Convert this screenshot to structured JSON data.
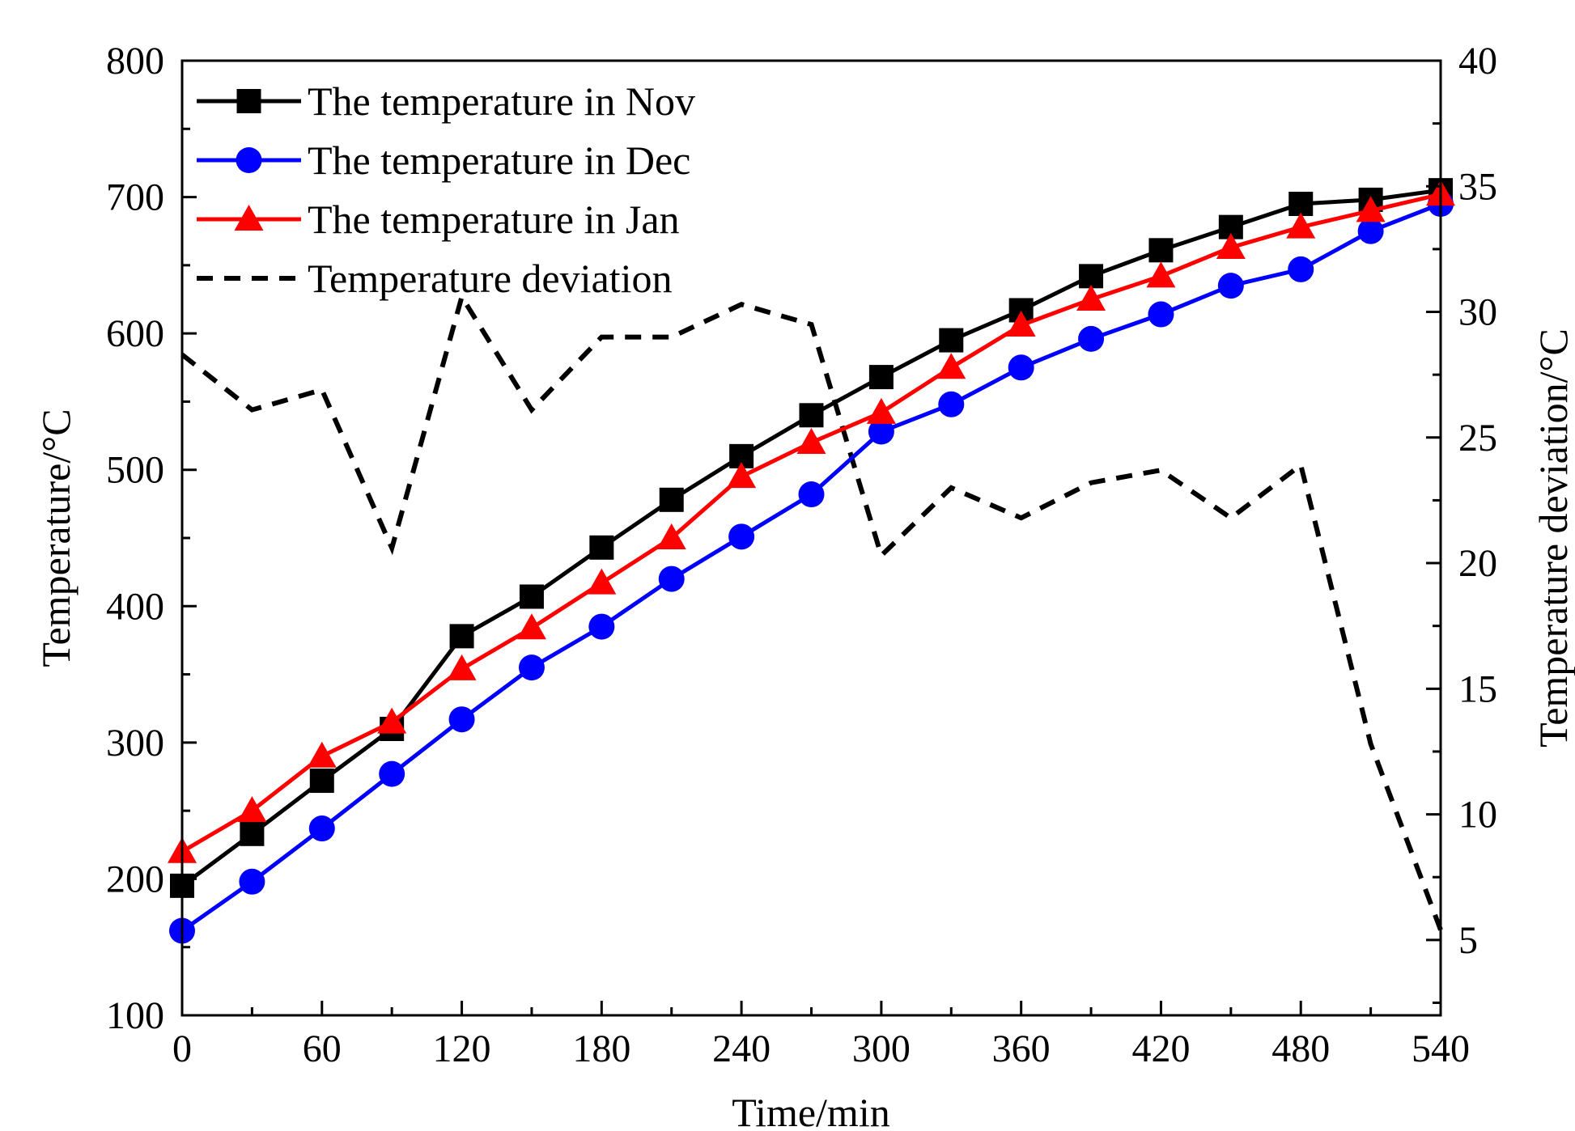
{
  "chart_data": {
    "type": "line",
    "title": "",
    "xlabel": "Time/min",
    "ylabel": "Temperature/°C",
    "y2label": "Temperature deviation/°C",
    "xlim": [
      0,
      540
    ],
    "ylim": [
      100,
      800
    ],
    "y2lim": [
      2,
      40
    ],
    "x_ticks": [
      0,
      60,
      120,
      180,
      240,
      300,
      360,
      420,
      480,
      540
    ],
    "y_ticks": [
      100,
      200,
      300,
      400,
      500,
      600,
      700,
      800
    ],
    "y2_ticks": [
      5,
      10,
      15,
      20,
      25,
      30,
      35,
      40
    ],
    "grid": false,
    "legend_position": "top-left",
    "x": [
      0,
      30,
      60,
      90,
      120,
      150,
      180,
      210,
      240,
      270,
      300,
      330,
      360,
      390,
      420,
      450,
      480,
      510,
      540
    ],
    "series": [
      {
        "name": "The temperature in Nov",
        "axis": "left",
        "color": "#000000",
        "marker": "square",
        "values": [
          195,
          233,
          272,
          310,
          378,
          407,
          443,
          478,
          510,
          540,
          568,
          595,
          617,
          642,
          661,
          678,
          695,
          698,
          705
        ]
      },
      {
        "name": "The temperature in Dec",
        "axis": "left",
        "color": "#0000ff",
        "marker": "circle",
        "values": [
          162,
          198,
          237,
          277,
          317,
          355,
          385,
          420,
          451,
          482,
          528,
          548,
          575,
          596,
          614,
          635,
          647,
          675,
          695
        ]
      },
      {
        "name": "The temperature in Jan",
        "axis": "left",
        "color": "#ff0000",
        "marker": "triangle",
        "values": [
          220,
          250,
          290,
          315,
          354,
          384,
          417,
          450,
          495,
          520,
          542,
          575,
          606,
          625,
          642,
          663,
          678,
          690,
          702
        ]
      },
      {
        "name": "Temperature deviation",
        "axis": "right",
        "color": "#000000",
        "marker": "none",
        "dashed": true,
        "values": [
          28.3,
          26.1,
          26.9,
          20.6,
          30.6,
          26.1,
          29.0,
          29.0,
          30.3,
          29.5,
          20.3,
          23.0,
          21.8,
          23.2,
          23.7,
          21.8,
          23.9,
          12.8,
          5.4
        ]
      }
    ]
  }
}
